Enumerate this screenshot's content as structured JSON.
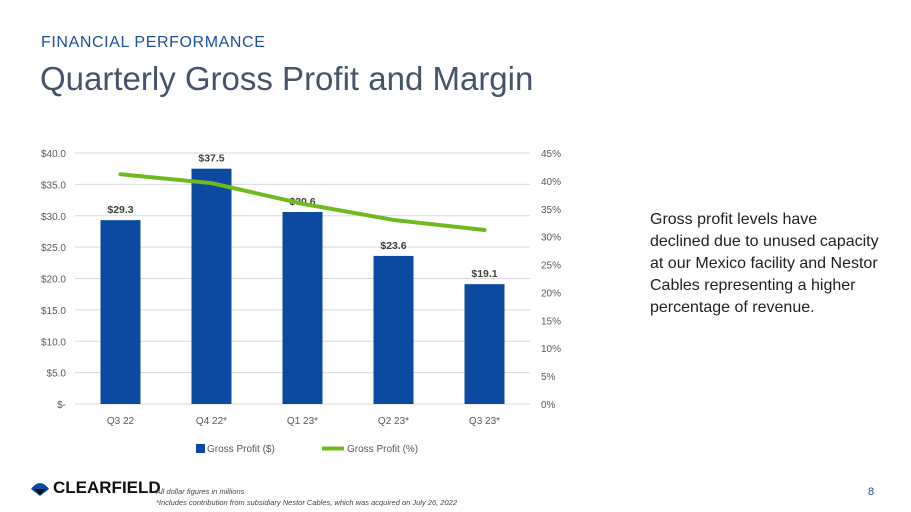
{
  "header": {
    "section": "FINANCIAL PERFORMANCE",
    "title": "Quarterly Gross Profit and Margin"
  },
  "commentary": "Gross profit levels have declined due to unused capacity at our Mexico facility and Nestor Cables representing a higher percentage of revenue.",
  "footer": {
    "logo": "CLEARFIELD",
    "note1": "All dollar figures in millions",
    "note2": "*Includes contribution from subsidiary Nestor Cables, which was acquired on July 26, 2022",
    "page": "8"
  },
  "colors": {
    "bar": "#0b4aa0",
    "line": "#6fba1e"
  },
  "chart_data": {
    "type": "bar",
    "categories": [
      "Q3 22",
      "Q4 22*",
      "Q1 23*",
      "Q2 23*",
      "Q3 23*"
    ],
    "series": [
      {
        "name": "Gross Profit ($)",
        "type": "bar",
        "axis": "left",
        "values": [
          29.3,
          37.5,
          30.6,
          23.6,
          19.1
        ],
        "labels": [
          "$29.3",
          "$37.5",
          "$30.6",
          "$23.6",
          "$19.1"
        ]
      },
      {
        "name": "Gross Profit (%)",
        "type": "line",
        "axis": "right",
        "values": [
          41.2,
          39.6,
          35.9,
          33.0,
          31.2
        ]
      }
    ],
    "left_axis": {
      "range": [
        0,
        40
      ],
      "ticks": [
        "$-",
        "$5.0",
        "$10.0",
        "$15.0",
        "$20.0",
        "$25.0",
        "$30.0",
        "$35.0",
        "$40.0"
      ]
    },
    "right_axis": {
      "range": [
        0,
        45
      ],
      "ticks": [
        "0%",
        "5%",
        "10%",
        "15%",
        "20%",
        "25%",
        "30%",
        "35%",
        "40%",
        "45%"
      ]
    },
    "legend": "bottom",
    "grid": true
  }
}
